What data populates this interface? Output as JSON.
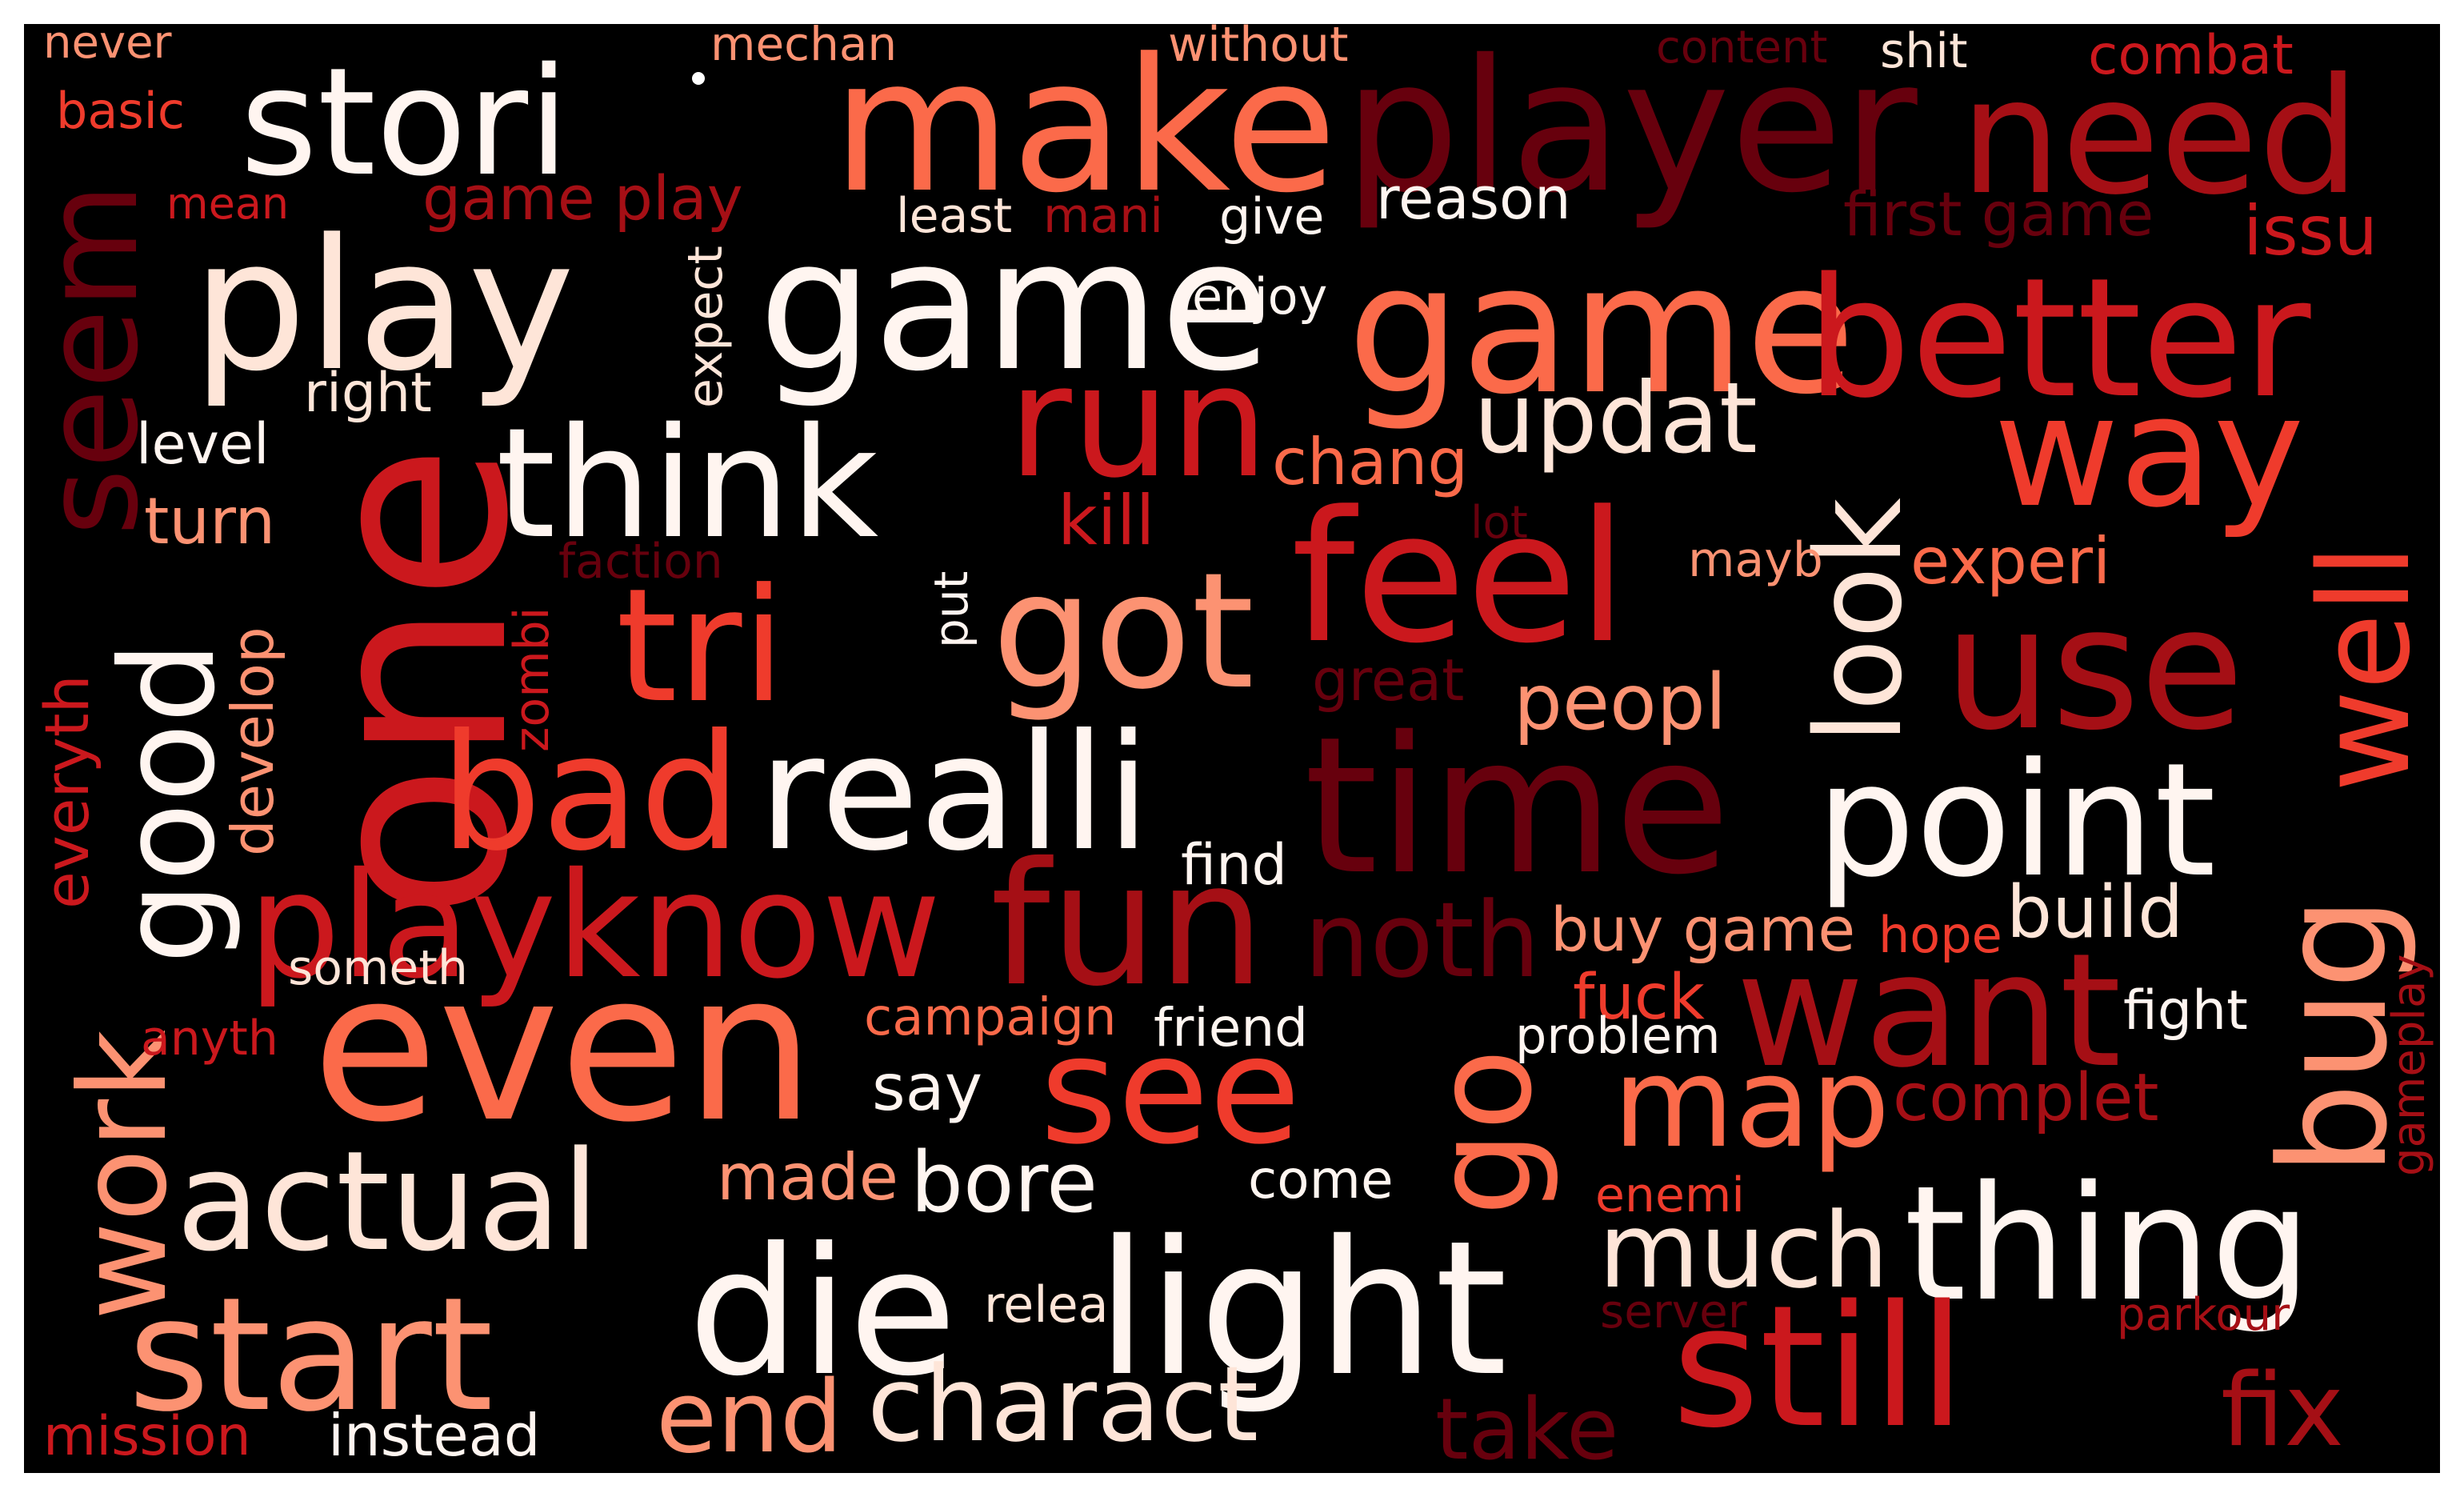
{
  "palette": {
    "background": "#000000",
    "pale": "#fee5d8",
    "white": "#fff5f0",
    "salmon": "#fc9272",
    "coral": "#fb6a4a",
    "red": "#ef3b2c",
    "crimson": "#cb181d",
    "darkred": "#a50f15",
    "maroon": "#67000d"
  },
  "words": {
    "never": "never",
    "mechan": "mechan",
    "without": "without",
    "content": "content",
    "shit": "shit",
    "combat": "combat",
    "basic": "basic",
    "stori": "stori",
    "make": "make",
    "player": "player",
    "need": "need",
    "seem": "seem",
    "mean": "mean",
    "game_play": "game play",
    "least": "least",
    "mani": "mani",
    "give": "give",
    "reason": "reason",
    "first_game": "first game",
    "issu": "issu",
    "play": "play",
    "game": "game",
    "game2": "game",
    "better": "better",
    "enjoy": "enjoy",
    "expect": "expect",
    "right": "right",
    "run": "run",
    "updat": "updat",
    "level": "level",
    "think": "think",
    "look": "look",
    "way": "way",
    "one": "one",
    "chang": "chang",
    "turn": "turn",
    "kill": "kill",
    "lot": "lot",
    "well": "well",
    "faction": "faction",
    "mayb": "mayb",
    "experi": "experi",
    "feel": "feel",
    "put": "put",
    "good": "good",
    "tri": "tri",
    "got": "got",
    "zombi": "zombi",
    "use": "use",
    "everyth": "everyth",
    "develop": "develop",
    "great": "great",
    "peopl": "peopl",
    "bad": "bad",
    "realli": "realli",
    "time": "time",
    "point": "point",
    "find": "find",
    "playknow": "playknow",
    "fun": "fun",
    "noth": "noth",
    "buy_game": "buy game",
    "hope": "hope",
    "build": "build",
    "bug": "bug",
    "work": "work",
    "someth": "someth",
    "fuck": "fuck",
    "want": "want",
    "fight": "fight",
    "anyth": "anyth",
    "even": "even",
    "campaign": "campaign",
    "friend": "friend",
    "go": "go",
    "problem": "problem",
    "gameplay": "gameplay",
    "see": "see",
    "say": "say",
    "map": "map",
    "complet": "complet",
    "actual": "actual",
    "made": "made",
    "bore": "bore",
    "come": "come",
    "enemi": "enemi",
    "much": "much",
    "thing": "thing",
    "die": "die",
    "relea": "relea",
    "light": "light",
    "server": "server",
    "parkour": "parkour",
    "start": "start",
    "still": "still",
    "charact": "charact",
    "end": "end",
    "fix": "fix",
    "take": "take",
    "mission": "mission",
    "instead": "instead"
  }
}
